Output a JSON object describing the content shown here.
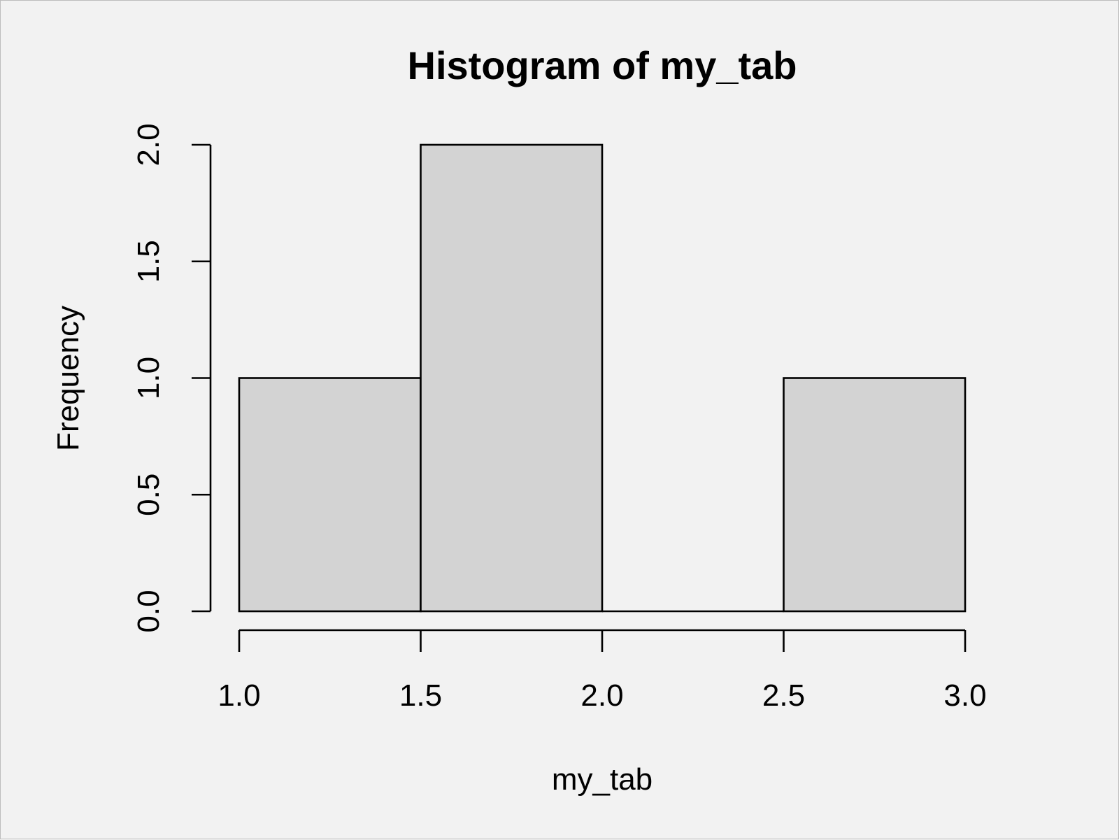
{
  "chart_data": {
    "type": "bar",
    "title": "Histogram of my_tab",
    "xlabel": "my_tab",
    "ylabel": "Frequency",
    "bins": [
      {
        "start": 1.0,
        "end": 1.5,
        "count": 1
      },
      {
        "start": 1.5,
        "end": 2.0,
        "count": 2
      },
      {
        "start": 2.0,
        "end": 2.5,
        "count": 0
      },
      {
        "start": 2.5,
        "end": 3.0,
        "count": 1
      }
    ],
    "xlim": [
      1.0,
      3.0
    ],
    "ylim": [
      0,
      2.0
    ],
    "x_ticks": [
      "1.0",
      "1.5",
      "2.0",
      "2.5",
      "3.0"
    ],
    "y_ticks": [
      "0.0",
      "0.5",
      "1.0",
      "1.5",
      "2.0"
    ],
    "bar_color": "#d3d3d3",
    "background": "#f2f2f2",
    "grid": false
  }
}
